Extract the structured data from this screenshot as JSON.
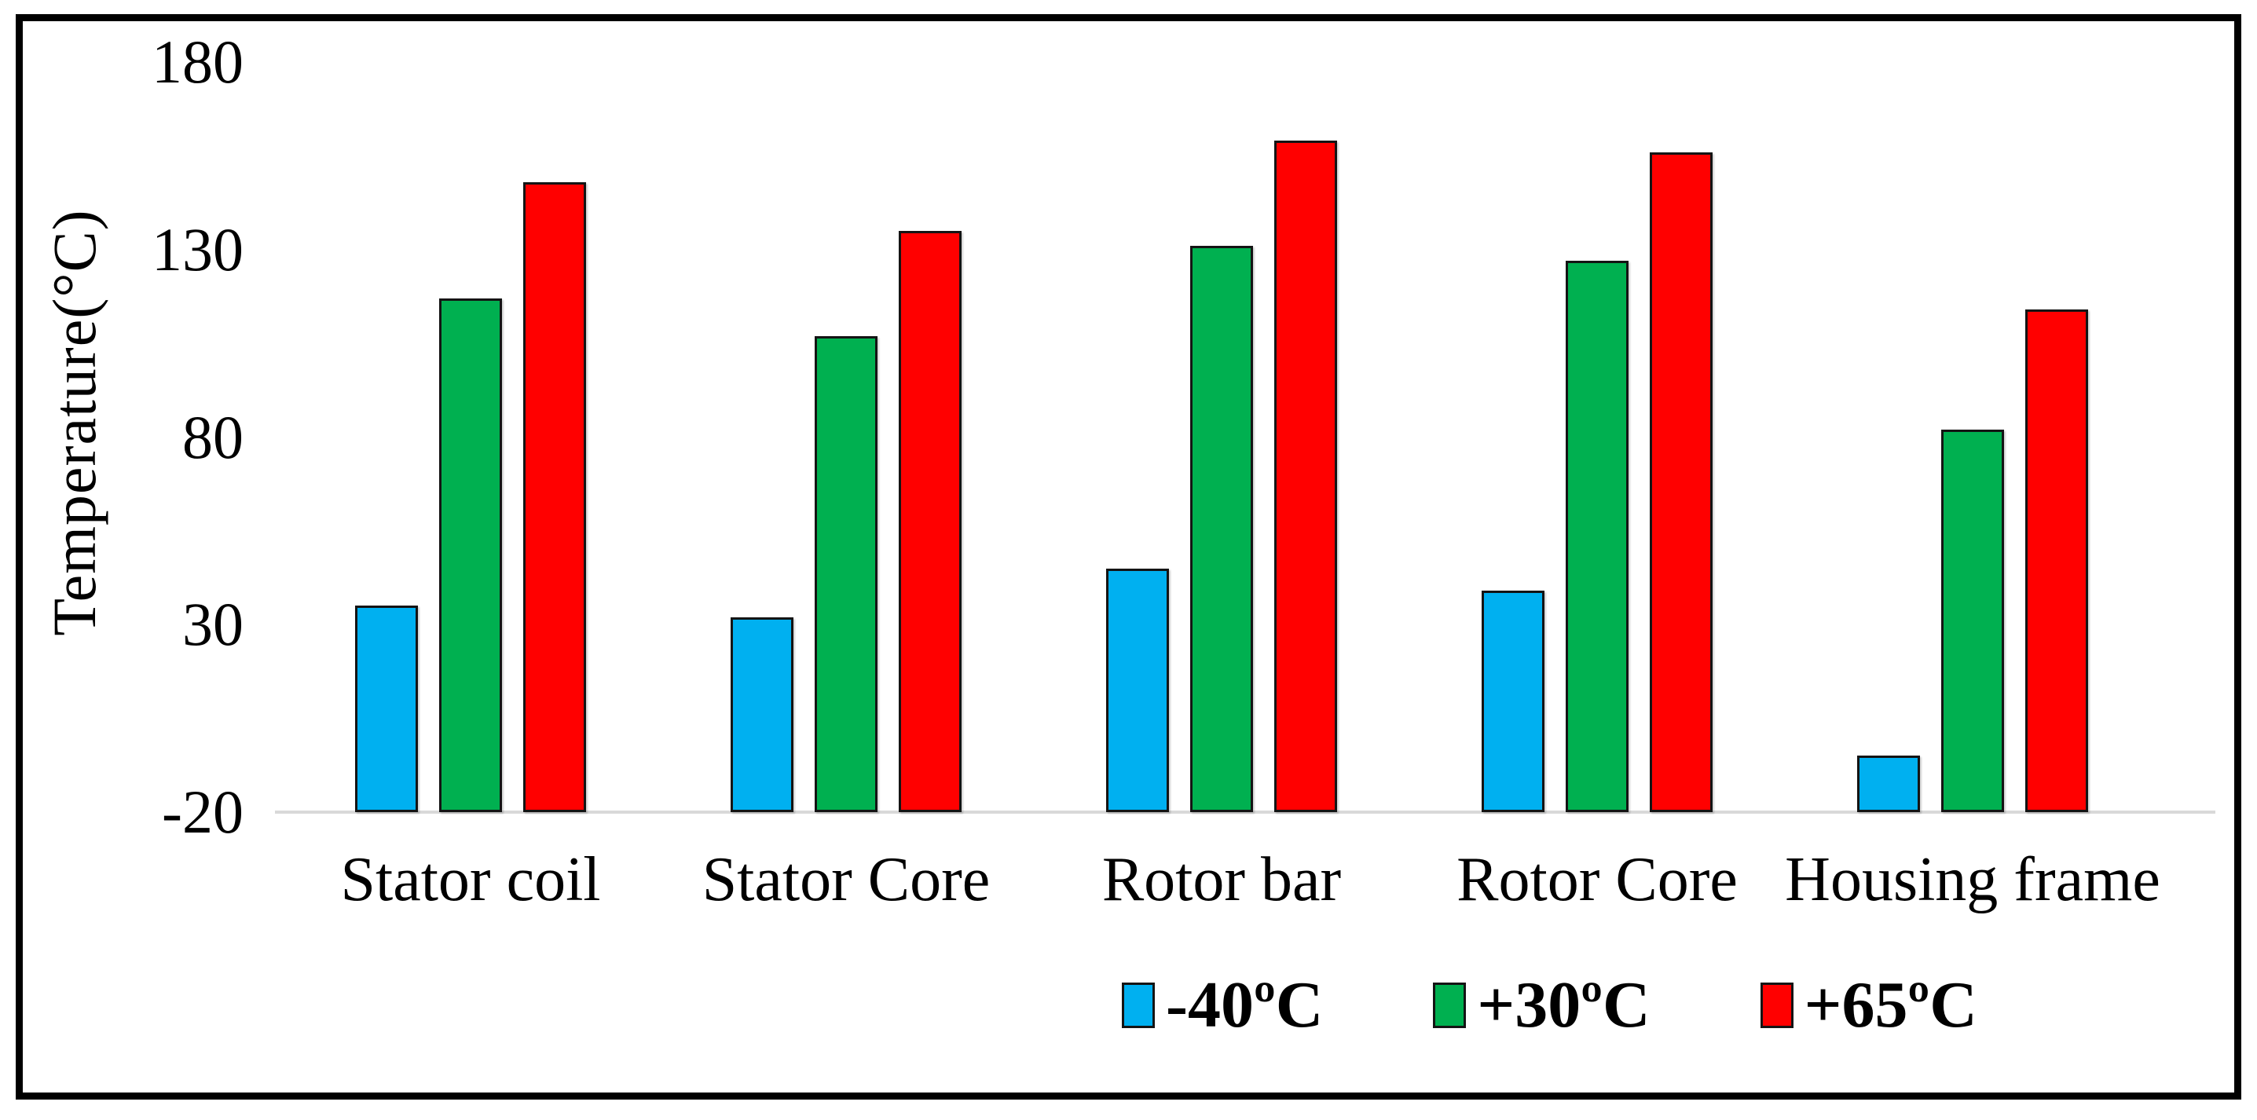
{
  "chart_data": {
    "type": "bar",
    "title": "",
    "xlabel": "",
    "ylabel": "Temperature(°C)",
    "categories": [
      "Stator coil",
      "Stator Core",
      "Rotor bar",
      "Rotor Core",
      "Housing frame"
    ],
    "series": [
      {
        "name": "-40ºC",
        "color": "#00B0F0",
        "values": [
          35,
          32,
          45,
          39,
          -5
        ]
      },
      {
        "name": "+30ºC",
        "color": "#00B050",
        "values": [
          117,
          107,
          131,
          127,
          82
        ]
      },
      {
        "name": "+65ºC",
        "color": "#FF0000",
        "values": [
          148,
          135,
          159,
          156,
          114
        ]
      }
    ],
    "y_ticks": [
      180,
      130,
      80,
      30,
      -20
    ],
    "ylim": [
      -20,
      180
    ],
    "grid": false,
    "legend_position": "bottom-right",
    "baseline_color": "#D9D9D9",
    "bar_border_color": "#141414",
    "frame_border_color": "#000000",
    "background_color": "#FFFFFF"
  }
}
